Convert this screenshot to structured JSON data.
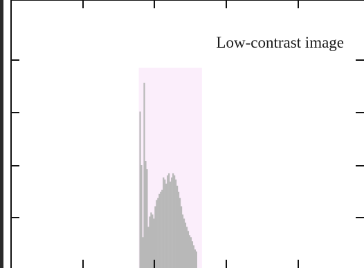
{
  "chart_data": {
    "type": "bar",
    "title": "Low-contrast image",
    "xlabel": "",
    "ylabel": "",
    "xlim": [
      0,
      255
    ],
    "ylim": [
      0,
      1
    ],
    "grid": false,
    "highlight_band": {
      "from": 92,
      "to": 138,
      "color": "#fbeefb"
    },
    "bar_color": "#b8b8b8",
    "x": [
      93,
      94,
      95,
      96,
      97,
      98,
      99,
      100,
      101,
      102,
      103,
      104,
      105,
      106,
      107,
      108,
      109,
      110,
      111,
      112,
      113,
      114,
      115,
      116,
      117,
      118,
      119,
      120,
      121,
      122,
      123,
      124,
      125,
      126,
      127,
      128,
      129,
      130,
      131,
      132,
      133,
      134
    ],
    "values": [
      0.76,
      0.5,
      0.15,
      0.9,
      0.52,
      0.48,
      0.2,
      0.25,
      0.27,
      0.26,
      0.24,
      0.3,
      0.33,
      0.34,
      0.36,
      0.37,
      0.38,
      0.44,
      0.43,
      0.41,
      0.45,
      0.46,
      0.42,
      0.44,
      0.46,
      0.45,
      0.43,
      0.4,
      0.37,
      0.34,
      0.3,
      0.26,
      0.24,
      0.22,
      0.2,
      0.18,
      0.16,
      0.15,
      0.13,
      0.11,
      0.09,
      0.08
    ]
  }
}
